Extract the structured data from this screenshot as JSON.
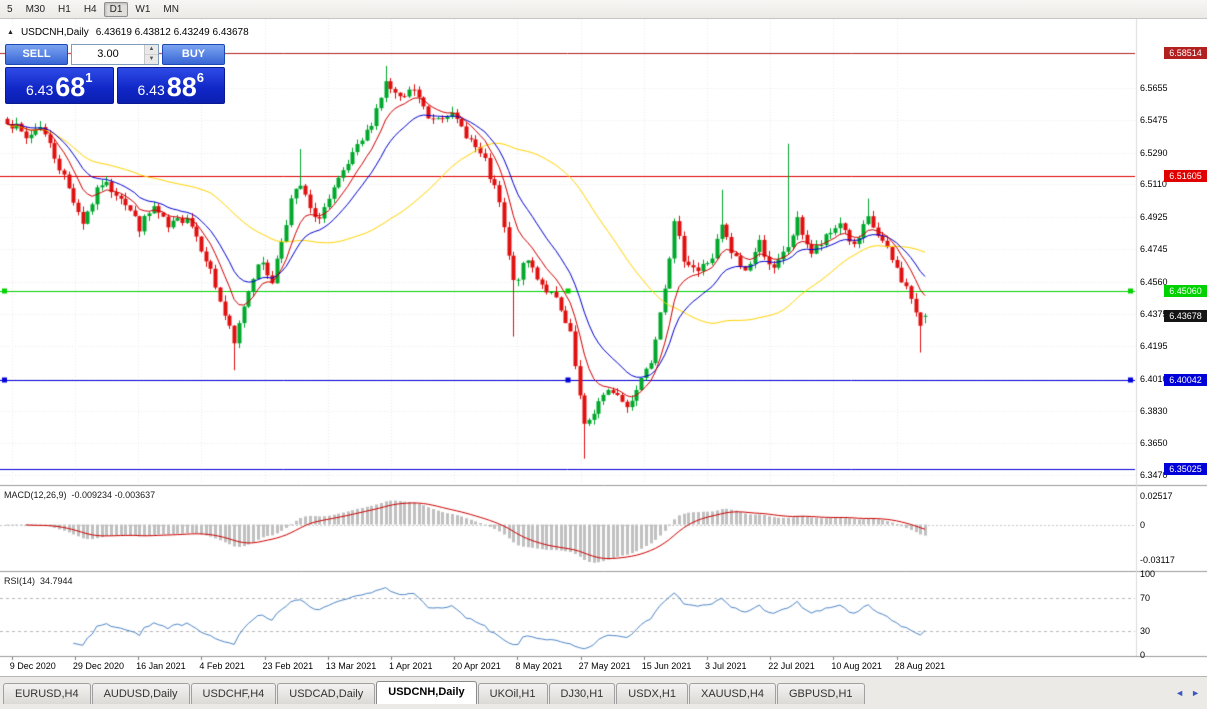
{
  "toolbar": {
    "timeframes": [
      "5",
      "M30",
      "H1",
      "H4",
      "D1",
      "W1",
      "MN"
    ],
    "active": "D1"
  },
  "chart_header": {
    "collapse_icon": "▲",
    "title": "USDCNH,Daily",
    "ohlc_text": "6.43619 6.43812 6.43249 6.43678"
  },
  "trade_panel": {
    "sell_label": "SELL",
    "buy_label": "BUY",
    "volume": "3.00",
    "sell_price": {
      "prefix": "6.43",
      "big": "68",
      "sup": "1"
    },
    "buy_price": {
      "prefix": "6.43",
      "big": "88",
      "sup": "6"
    }
  },
  "chart_data": {
    "type": "candlestick",
    "symbol": "USDCNH",
    "period": "Daily",
    "ohlc_current": {
      "open": 6.43619,
      "high": 6.43812,
      "low": 6.43249,
      "close": 6.43678
    },
    "candle_count": 195,
    "price_scale": {
      "top": 6.6045,
      "bottom": 6.3417
    },
    "macd_scale": {
      "top": 0.032,
      "bottom": -0.038
    },
    "y_ticks": [
      "6.5655",
      "6.5475",
      "6.5290",
      "6.5110",
      "6.4925",
      "6.4745",
      "6.4560",
      "6.4375",
      "6.4195",
      "6.4010",
      "6.3830",
      "6.3650",
      "6.3470"
    ],
    "x_labels": [
      "9 Dec 2020",
      "29 Dec 2020",
      "16 Jan 2021",
      "4 Feb 2021",
      "23 Feb 2021",
      "13 Mar 2021",
      "1 Apr 2021",
      "20 Apr 2021",
      "8 May 2021",
      "27 May 2021",
      "15 Jun 2021",
      "3 Jul 2021",
      "22 Jul 2021",
      "10 Aug 2021",
      "28 Aug 2021"
    ],
    "hlines": [
      {
        "text": "6.58514",
        "value": 6.58514,
        "color": "#b22020",
        "selected": false
      },
      {
        "text": "6.51605",
        "value": 6.51605,
        "color": "#e00000",
        "selected": false
      },
      {
        "text": "6.45060",
        "value": 6.4506,
        "color": "#00d200",
        "selected": true
      },
      {
        "text": "6.40042",
        "value": 6.40042,
        "color": "#0000d8",
        "selected": true
      },
      {
        "text": "6.35025",
        "value": 6.35025,
        "color": "#0000d8",
        "selected": false
      }
    ],
    "current_price": {
      "value": 6.43678,
      "text": "6.43678",
      "bg": "#151515"
    },
    "price_waypoints": [
      [
        0,
        6.548
      ],
      [
        4,
        6.537
      ],
      [
        7,
        6.545
      ],
      [
        12,
        6.515
      ],
      [
        16,
        6.49
      ],
      [
        20,
        6.512
      ],
      [
        24,
        6.505
      ],
      [
        28,
        6.487
      ],
      [
        31,
        6.498
      ],
      [
        34,
        6.486
      ],
      [
        38,
        6.494
      ],
      [
        42,
        6.47
      ],
      [
        46,
        6.437
      ],
      [
        48,
        6.42
      ],
      [
        50,
        6.443
      ],
      [
        53,
        6.468
      ],
      [
        56,
        6.457
      ],
      [
        60,
        6.502
      ],
      [
        62,
        6.51
      ],
      [
        65,
        6.49
      ],
      [
        68,
        6.502
      ],
      [
        72,
        6.522
      ],
      [
        76,
        6.54
      ],
      [
        80,
        6.568
      ],
      [
        83,
        6.558
      ],
      [
        86,
        6.565
      ],
      [
        89,
        6.548
      ],
      [
        93,
        6.552
      ],
      [
        97,
        6.54
      ],
      [
        101,
        6.523
      ],
      [
        104,
        6.5
      ],
      [
        107,
        6.455
      ],
      [
        110,
        6.468
      ],
      [
        113,
        6.455
      ],
      [
        116,
        6.445
      ],
      [
        119,
        6.425
      ],
      [
        122,
        6.373
      ],
      [
        125,
        6.388
      ],
      [
        128,
        6.395
      ],
      [
        131,
        6.385
      ],
      [
        134,
        6.402
      ],
      [
        136,
        6.412
      ],
      [
        139,
        6.455
      ],
      [
        141,
        6.488
      ],
      [
        143,
        6.47
      ],
      [
        146,
        6.462
      ],
      [
        149,
        6.47
      ],
      [
        151,
        6.487
      ],
      [
        153,
        6.472
      ],
      [
        156,
        6.462
      ],
      [
        159,
        6.478
      ],
      [
        162,
        6.462
      ],
      [
        165,
        6.476
      ],
      [
        167,
        6.49
      ],
      [
        170,
        6.472
      ],
      [
        173,
        6.48
      ],
      [
        176,
        6.49
      ],
      [
        179,
        6.475
      ],
      [
        182,
        6.491
      ],
      [
        185,
        6.478
      ],
      [
        188,
        6.463
      ],
      [
        191,
        6.447
      ],
      [
        193,
        6.429
      ],
      [
        194,
        6.43678
      ]
    ],
    "wick_spikes": [
      {
        "i": 48,
        "low": 6.406
      },
      {
        "i": 62,
        "high": 6.531
      },
      {
        "i": 80,
        "high": 6.578
      },
      {
        "i": 107,
        "low": 6.425
      },
      {
        "i": 122,
        "low": 6.356
      },
      {
        "i": 151,
        "high": 6.508
      },
      {
        "i": 165,
        "high": 6.534
      },
      {
        "i": 182,
        "high": 6.503
      },
      {
        "i": 193,
        "low": 6.416
      }
    ],
    "ma_periods": {
      "fast": 8,
      "mid": 16,
      "slow": 44
    },
    "colors": {
      "bull": "#00a82c",
      "bear": "#e01010",
      "ma_fast": "#d00000",
      "ma_mid": "#0000d0",
      "ma_slow": "#ffd400",
      "grid": "#ececec",
      "macd_hist": "#c0c0c0",
      "macd_signal": "#cc0000",
      "rsi_line": "#4f86c6"
    }
  },
  "indicators": {
    "macd": {
      "label": "MACD(12,26,9)",
      "values": "-0.009234 -0.003637",
      "axis_labels": [
        "0.02517",
        "0",
        "-0.03117"
      ],
      "axis_values": [
        0.02517,
        0,
        -0.03117
      ]
    },
    "rsi": {
      "label": "RSI(14)",
      "value": "34.7944",
      "axis_labels": [
        "100",
        "70",
        "30",
        "0"
      ],
      "axis_values": [
        100,
        70,
        30,
        0
      ],
      "levels": [
        70,
        30
      ]
    }
  },
  "tabs": {
    "items": [
      "EURUSD,H4",
      "AUDUSD,Daily",
      "USDCHF,H4",
      "USDCAD,Daily",
      "USDCNH,Daily",
      "UKOil,H1",
      "DJ30,H1",
      "USDX,H1",
      "XAUUSD,H4",
      "GBPUSD,H1"
    ],
    "active_index": 4
  }
}
